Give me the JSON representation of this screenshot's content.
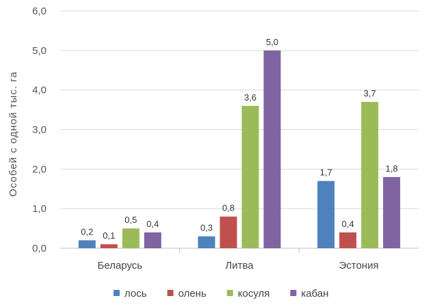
{
  "chart_data": {
    "type": "bar",
    "title": "",
    "xlabel": "",
    "ylabel": "Особей с одной тыс. га",
    "ylim": [
      0,
      6
    ],
    "yticks": [
      0,
      1,
      2,
      3,
      4,
      5,
      6
    ],
    "ytick_labels": [
      "0,0",
      "1,0",
      "2,0",
      "3,0",
      "4,0",
      "5,0",
      "6,0"
    ],
    "grid": true,
    "legend_position": "bottom",
    "categories": [
      "Беларусь",
      "Литва",
      "Эстония"
    ],
    "series": [
      {
        "name": "лось",
        "color": "#4f81bd",
        "values": [
          0.2,
          0.3,
          1.7
        ],
        "labels": [
          "0,2",
          "0,3",
          "1,7"
        ]
      },
      {
        "name": "олень",
        "color": "#c0504d",
        "values": [
          0.1,
          0.8,
          0.4
        ],
        "labels": [
          "0,1",
          "0,8",
          "0,4"
        ]
      },
      {
        "name": "косуля",
        "color": "#9bbb59",
        "values": [
          0.5,
          3.6,
          3.7
        ],
        "labels": [
          "0,5",
          "3,6",
          "3,7"
        ]
      },
      {
        "name": "кабан",
        "color": "#8064a2",
        "values": [
          0.4,
          5.0,
          1.8
        ],
        "labels": [
          "0,4",
          "5,0",
          "1,8"
        ]
      }
    ]
  }
}
